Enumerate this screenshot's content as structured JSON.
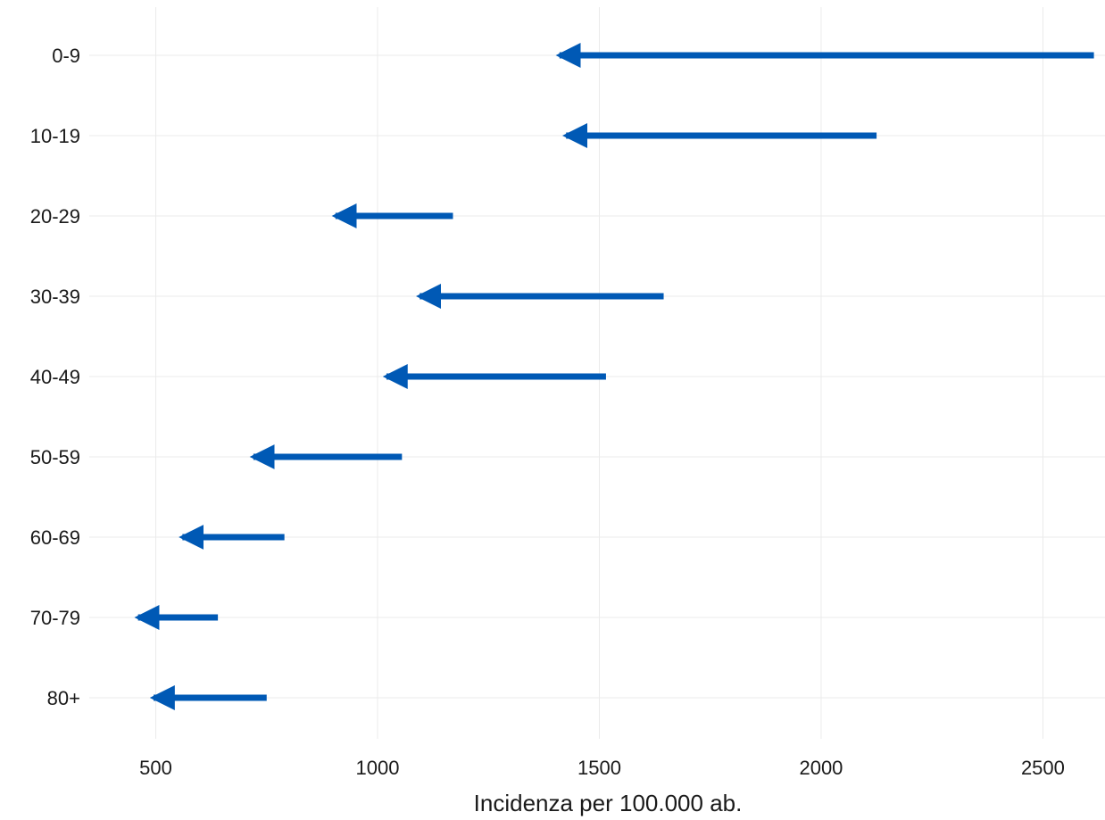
{
  "chart_data": {
    "type": "arrow-range",
    "xlabel": "Incidenza per 100.000 ab.",
    "ylabel": "",
    "xlim": [
      350,
      2640
    ],
    "x_ticks": [
      500,
      1000,
      1500,
      2000,
      2500
    ],
    "categories": [
      "0-9",
      "10-19",
      "20-29",
      "30-39",
      "40-49",
      "50-59",
      "60-69",
      "70-79",
      "80+"
    ],
    "series": [
      {
        "values_from": [
          2615,
          2125,
          1170,
          1645,
          1515,
          1055,
          790,
          640,
          750
        ]
      },
      {
        "values_to": [
          1410,
          1425,
          905,
          1095,
          1020,
          720,
          560,
          460,
          495
        ]
      }
    ],
    "arrow_color": "#0059B5",
    "grid": true,
    "legend": "none"
  }
}
